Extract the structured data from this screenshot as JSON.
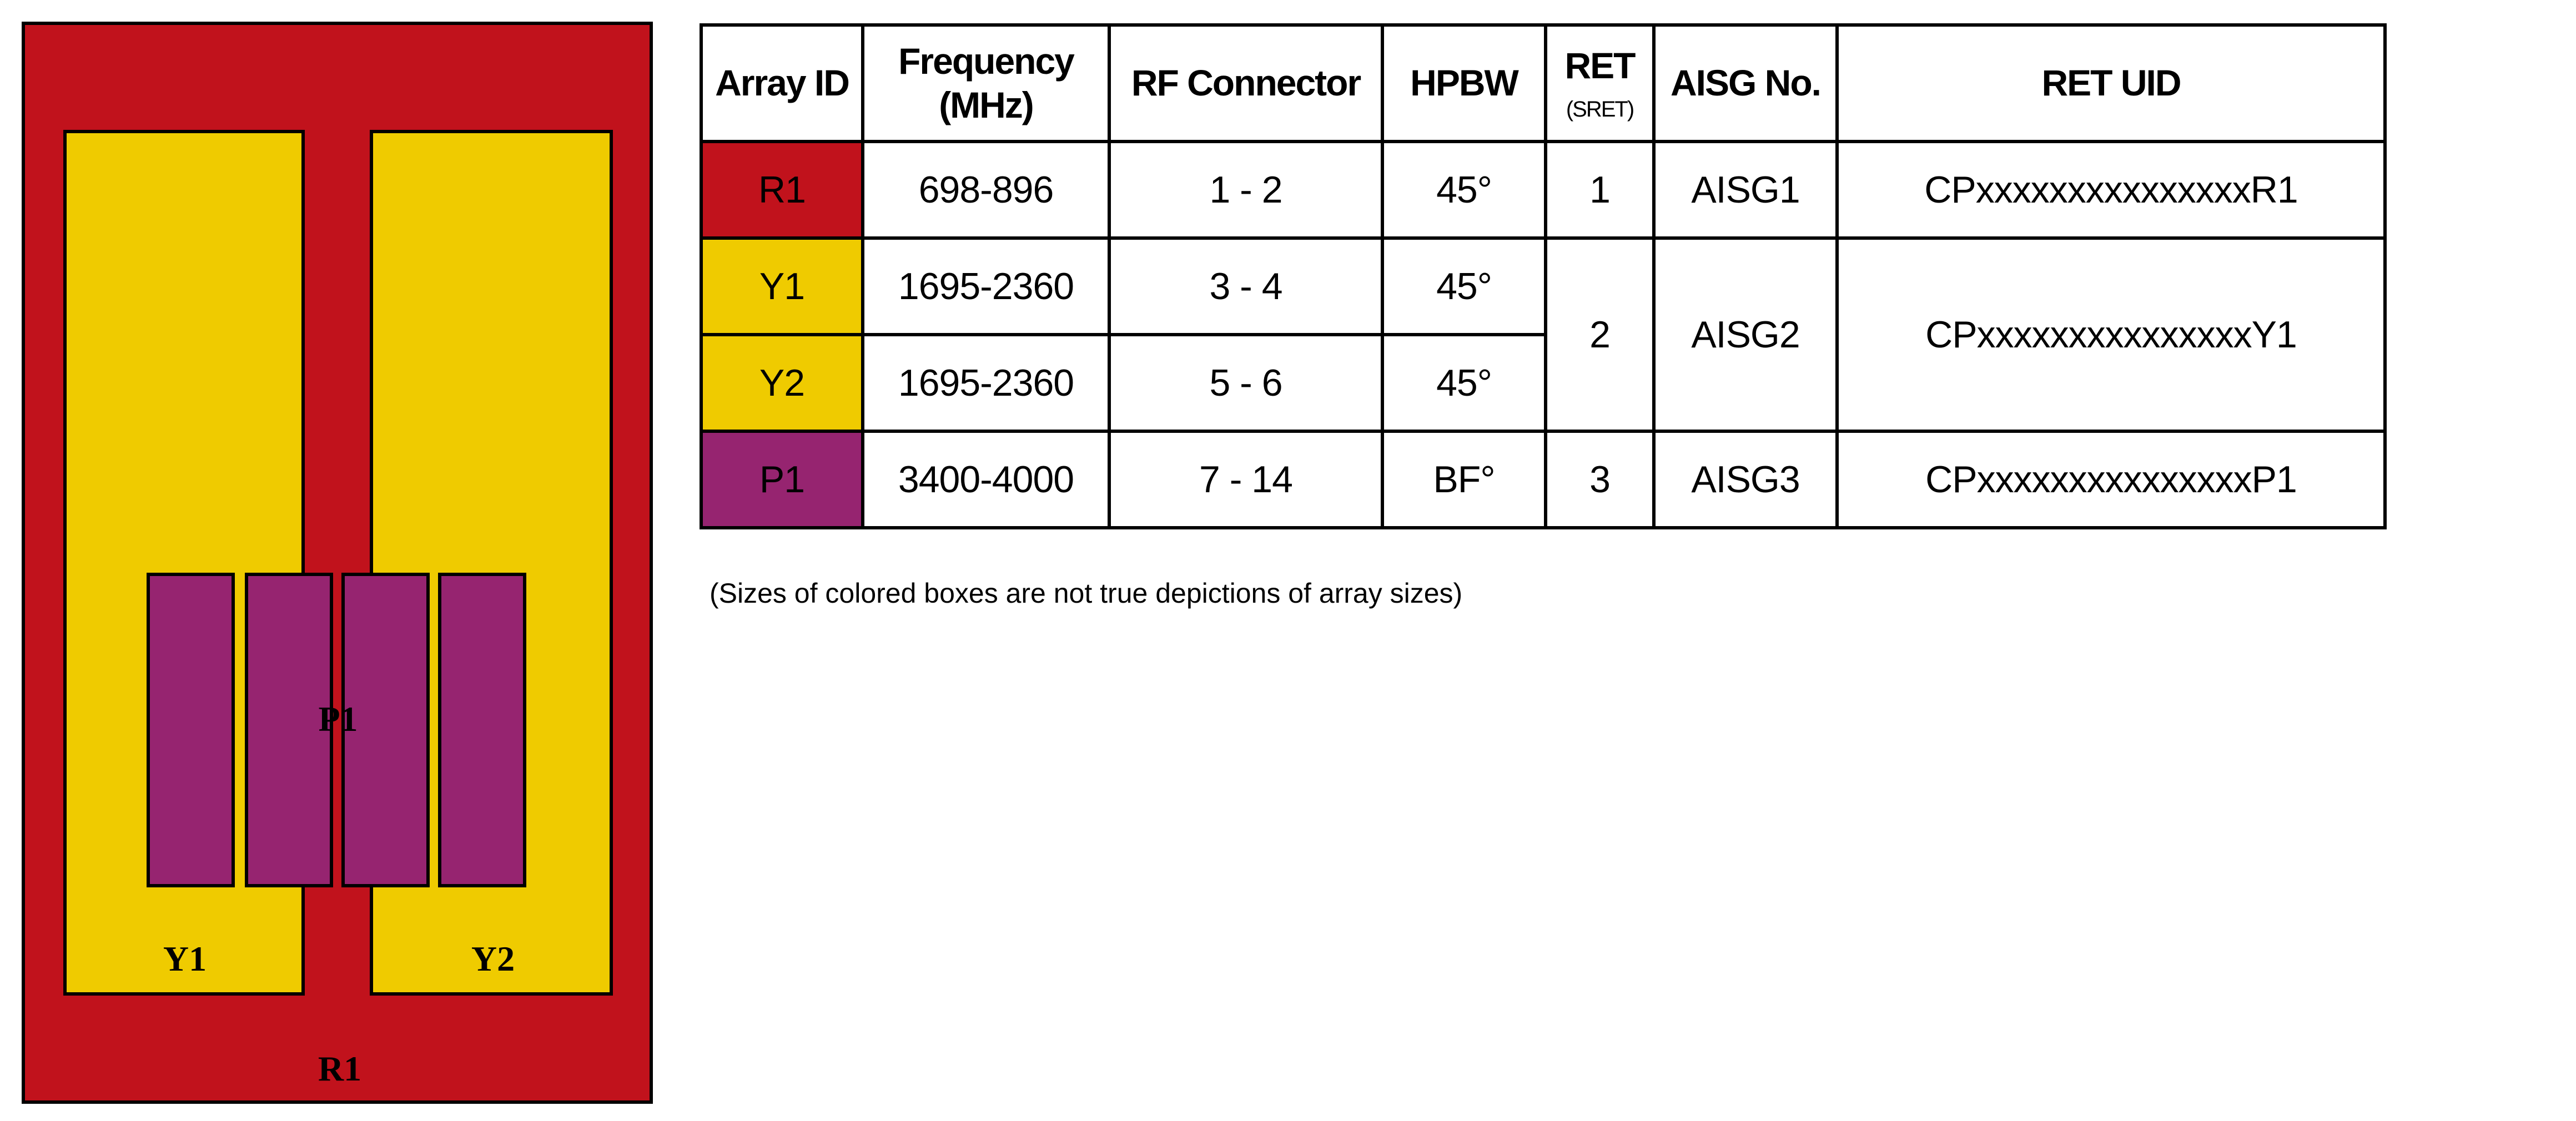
{
  "diagram": {
    "colors": {
      "red": "#c1121c",
      "yellow": "#efcb00",
      "purple": "#962470"
    },
    "labels": {
      "r1": "R1",
      "y1": "Y1",
      "y2": "Y2",
      "p1": "P1"
    }
  },
  "table": {
    "headers": {
      "array_id": "Array ID",
      "frequency": "Frequency (MHz)",
      "rf_connector": "RF Connector",
      "hpbw": "HPBW",
      "ret": "RET",
      "ret_sub": "(SRET)",
      "aisg": "AISG No.",
      "ret_uid": "RET UID"
    },
    "rows": [
      {
        "array_id": "R1",
        "color": "#c1121c",
        "frequency": "698-896",
        "rf_connector": "1 - 2",
        "hpbw": "45°",
        "ret": "1",
        "aisg": "AISG1",
        "ret_uid": "CPxxxxxxxxxxxxxxxR1"
      },
      {
        "array_id": "Y1",
        "color": "#efcb00",
        "frequency": "1695-2360",
        "rf_connector": "3 - 4",
        "hpbw": "45°",
        "ret": "2",
        "aisg": "AISG2",
        "ret_uid": "CPxxxxxxxxxxxxxxxY1"
      },
      {
        "array_id": "Y2",
        "color": "#efcb00",
        "frequency": "1695-2360",
        "rf_connector": "5 - 6",
        "hpbw": "45°"
      },
      {
        "array_id": "P1",
        "color": "#962470",
        "frequency": "3400-4000",
        "rf_connector": "7 - 14",
        "hpbw": "BF°",
        "ret": "3",
        "aisg": "AISG3",
        "ret_uid": "CPxxxxxxxxxxxxxxxP1"
      }
    ]
  },
  "caption": "(Sizes of colored boxes are not true depictions of array sizes)"
}
